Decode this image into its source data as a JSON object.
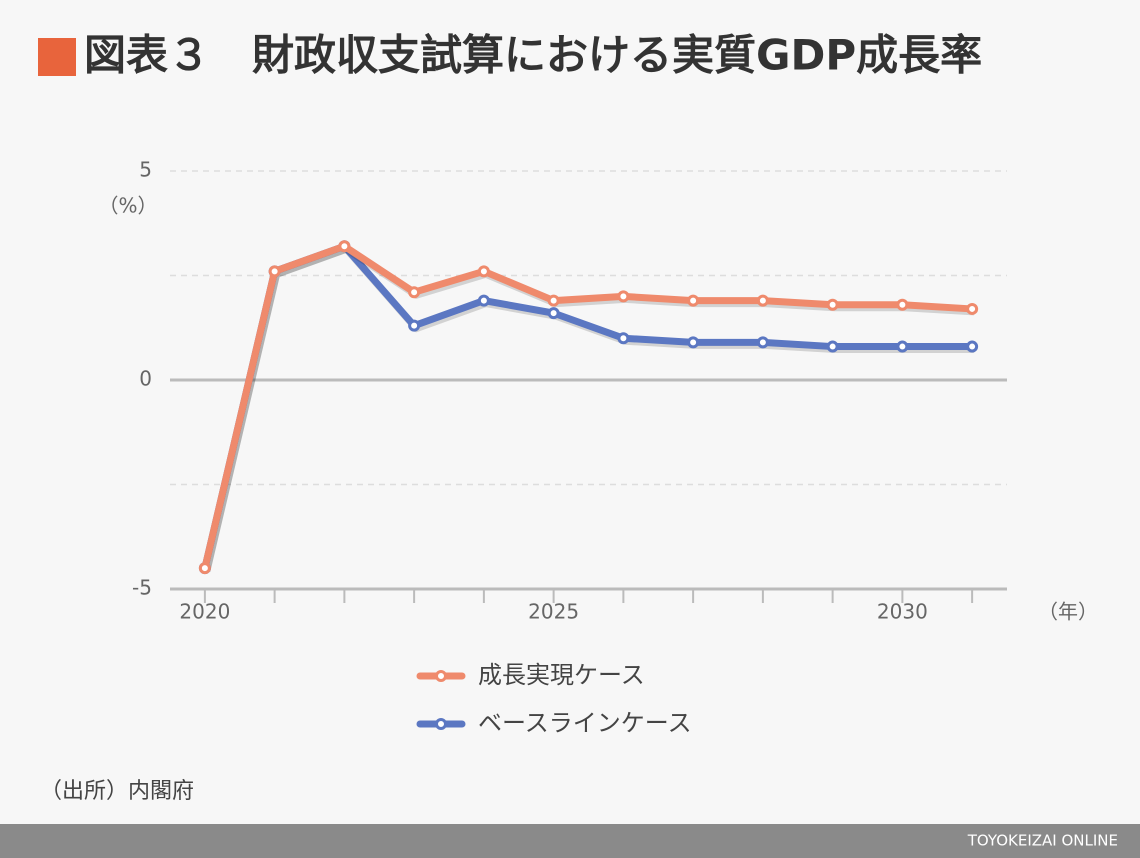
{
  "chart_data": {
    "type": "line",
    "title": "図表３　財政収支試算における実質GDP成長率",
    "y_label": "（%）",
    "x_label": "（年）",
    "source": "（出所）内閣府",
    "footer": "TOYOKEIZAI ONLINE",
    "x": [
      2020,
      2021,
      2022,
      2023,
      2024,
      2025,
      2026,
      2027,
      2028,
      2029,
      2030,
      2031
    ],
    "series": [
      {
        "name": "成長実現ケース",
        "color": "#ef8a6c",
        "values": [
          -4.5,
          2.6,
          3.2,
          2.1,
          2.6,
          1.9,
          2.0,
          1.9,
          1.9,
          1.8,
          1.8,
          1.7
        ]
      },
      {
        "name": "ベースラインケース",
        "color": "#5b77c2",
        "values": [
          -4.5,
          2.6,
          3.2,
          1.3,
          1.9,
          1.6,
          1.0,
          0.9,
          0.9,
          0.8,
          0.8,
          0.8
        ]
      }
    ],
    "xlim": [
      2019.5,
      2031.5
    ],
    "xticks": [
      2020,
      2025,
      2030
    ],
    "ylim": [
      -5,
      5
    ],
    "yticks": [
      -5,
      0,
      5
    ],
    "ygrid": [
      -5,
      -2.5,
      0,
      2.5,
      5
    ],
    "grid": true
  }
}
